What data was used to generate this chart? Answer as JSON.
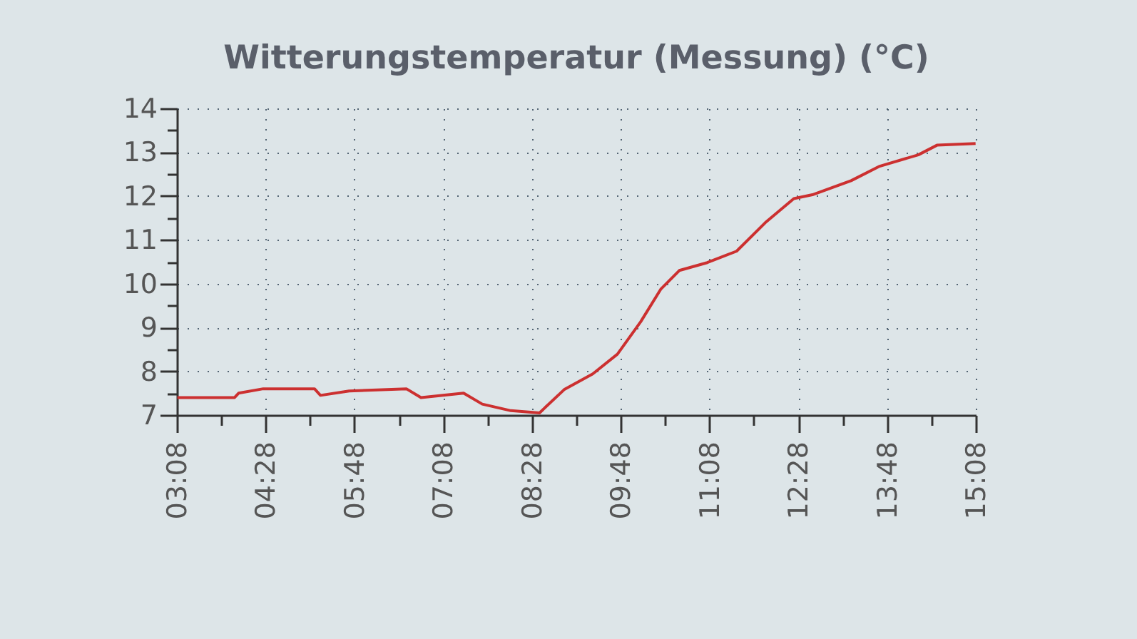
{
  "chart_data": {
    "type": "line",
    "title": "Witterungstemperatur (Messung) (°C)",
    "xlim": [
      3.1333,
      15.1333
    ],
    "xticks": [
      {
        "value": 3.1333,
        "label": "03:08"
      },
      {
        "value": 3.8,
        "label": null
      },
      {
        "value": 4.4667,
        "label": "04:28"
      },
      {
        "value": 5.1333,
        "label": null
      },
      {
        "value": 5.8,
        "label": "05:48"
      },
      {
        "value": 6.4667,
        "label": null
      },
      {
        "value": 7.1333,
        "label": "07:08"
      },
      {
        "value": 7.8,
        "label": null
      },
      {
        "value": 8.4667,
        "label": "08:28"
      },
      {
        "value": 9.1333,
        "label": null
      },
      {
        "value": 9.8,
        "label": "09:48"
      },
      {
        "value": 10.4667,
        "label": null
      },
      {
        "value": 11.1333,
        "label": "11:08"
      },
      {
        "value": 11.8,
        "label": null
      },
      {
        "value": 12.4667,
        "label": "12:28"
      },
      {
        "value": 13.1333,
        "label": null
      },
      {
        "value": 13.8,
        "label": "13:48"
      },
      {
        "value": 14.4667,
        "label": null
      },
      {
        "value": 15.1333,
        "label": "15:08"
      }
    ],
    "ylim": [
      7,
      14
    ],
    "yticks": [
      7,
      {
        "value": 7.5,
        "label": null
      },
      8,
      {
        "value": 8.5,
        "label": null
      },
      9,
      {
        "value": 9.5,
        "label": null
      },
      10,
      {
        "value": 10.5,
        "label": null
      },
      11,
      {
        "value": 11.5,
        "label": null
      },
      12,
      {
        "value": 12.5,
        "label": null
      },
      13,
      {
        "value": 13.5,
        "label": null
      },
      14
    ],
    "grid": true,
    "series": [
      {
        "color": "#cc3030",
        "x": [
          3.14,
          4.0,
          4.06,
          4.43,
          5.2,
          5.29,
          5.72,
          6.58,
          6.8,
          7.44,
          7.72,
          8.15,
          8.58,
          8.95,
          9.38,
          9.75,
          10.1,
          10.4,
          10.68,
          11.1,
          11.54,
          11.97,
          12.4,
          12.68,
          13.26,
          13.69,
          14.27,
          14.55,
          15.13
        ],
        "values": [
          7.4,
          7.4,
          7.5,
          7.6,
          7.6,
          7.45,
          7.55,
          7.6,
          7.4,
          7.5,
          7.25,
          7.1,
          7.05,
          7.58,
          7.94,
          8.39,
          9.13,
          9.87,
          10.3,
          10.48,
          10.74,
          11.39,
          11.94,
          12.03,
          12.35,
          12.68,
          12.94,
          13.16,
          13.2
        ]
      }
    ]
  }
}
